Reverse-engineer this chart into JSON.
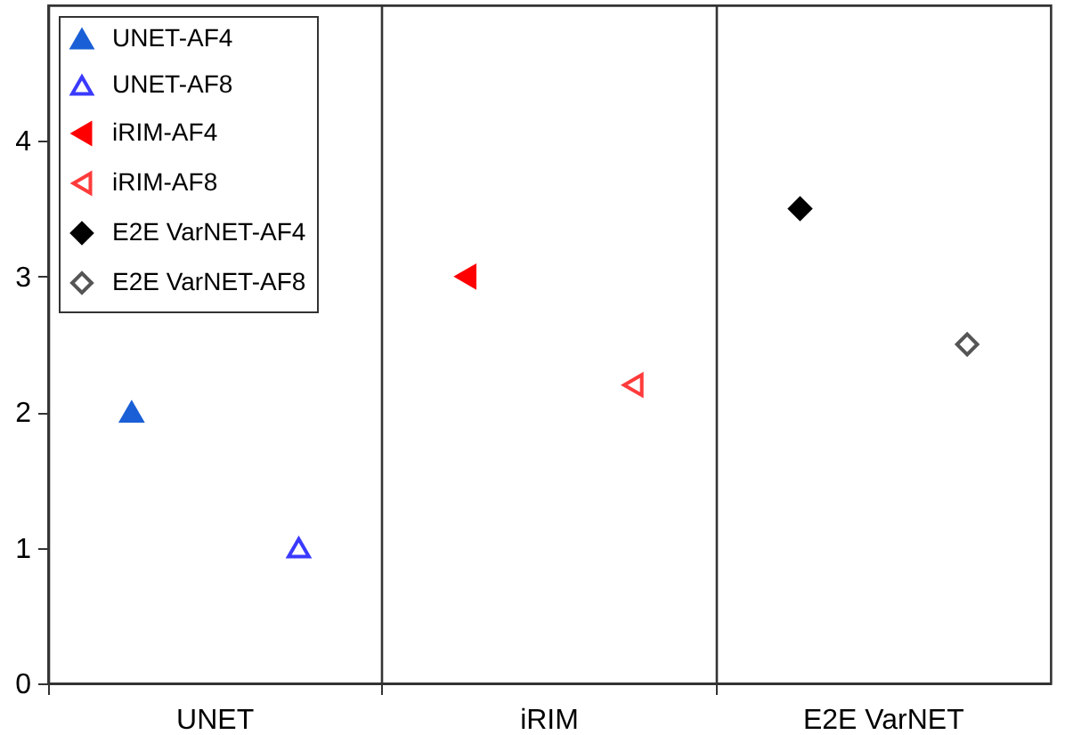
{
  "chart_data": {
    "type": "scatter",
    "categories": [
      "UNET",
      "iRIM",
      "E2E VarNET"
    ],
    "ylim": [
      0,
      5
    ],
    "yticks": [
      0,
      1,
      2,
      3,
      4
    ],
    "grid": "x",
    "legend": "top left",
    "series": [
      {
        "name": "UNET-AF4",
        "color": "#1a5fd6",
        "marker": "triangle",
        "values": [
          2,
          null,
          null
        ]
      },
      {
        "name": "UNET-AF8",
        "color": "#3a3aff",
        "marker": "triangle-open",
        "values": [
          1,
          null,
          null
        ]
      },
      {
        "name": "iRIM-AF4",
        "color": "#ff0000",
        "marker": "triangle-left",
        "values": [
          null,
          3,
          null
        ]
      },
      {
        "name": "iRIM-AF8",
        "color": "#ff3b3b",
        "marker": "triangle-left-open",
        "values": [
          null,
          2.2,
          null
        ]
      },
      {
        "name": "E2E VarNET-AF4",
        "color": "#000000",
        "marker": "diamond",
        "values": [
          null,
          null,
          3.5
        ]
      },
      {
        "name": "E2E VarNET-AF8",
        "color": "#555555",
        "marker": "diamond-open",
        "values": [
          null,
          null,
          2.5
        ]
      }
    ]
  }
}
